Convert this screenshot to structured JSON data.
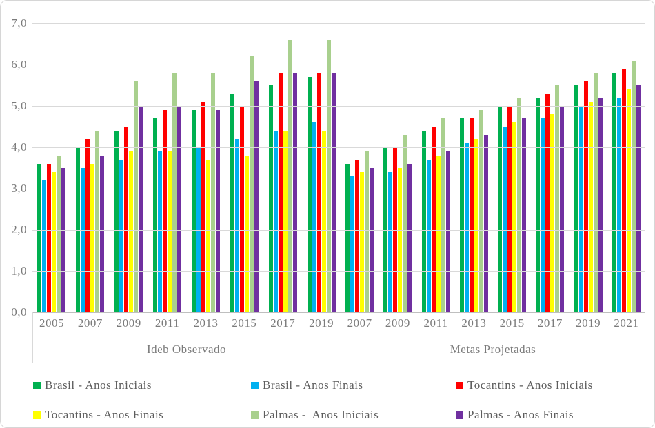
{
  "chart_data": {
    "type": "bar",
    "title": "",
    "xlabel": "",
    "ylabel": "",
    "ylim": [
      0,
      7
    ],
    "grid": true,
    "legend_position": "bottom",
    "yticks": [
      0,
      1,
      2,
      3,
      4,
      5,
      6,
      7
    ],
    "ytick_labels": [
      "0,0",
      "1,0",
      "2,0",
      "3,0",
      "4,0",
      "5,0",
      "6,0",
      "7,0"
    ],
    "groups": [
      {
        "label": "Ideb Observado",
        "categories": [
          "2005",
          "2007",
          "2009",
          "2011",
          "2013",
          "2015",
          "2017",
          "2019"
        ],
        "series": [
          {
            "name": "Brasil - Anos Iniciais",
            "color": "#00B050",
            "values": [
              3.6,
              4.0,
              4.4,
              4.7,
              4.9,
              5.3,
              5.5,
              5.7
            ]
          },
          {
            "name": "Brasil - Anos Finais",
            "color": "#00B0F0",
            "values": [
              3.2,
              3.5,
              3.7,
              3.9,
              4.0,
              4.2,
              4.4,
              4.6
            ]
          },
          {
            "name": "Tocantins - Anos Iniciais",
            "color": "#FF0000",
            "values": [
              3.6,
              4.2,
              4.5,
              4.9,
              5.1,
              5.0,
              5.8,
              5.8
            ]
          },
          {
            "name": "Tocantins - Anos Finais",
            "color": "#FFFF00",
            "values": [
              3.4,
              3.6,
              3.9,
              3.9,
              3.7,
              3.8,
              4.4,
              4.4
            ]
          },
          {
            "name": "Palmas -  Anos Iniciais",
            "color": "#A9D08E",
            "values": [
              3.8,
              4.4,
              5.6,
              5.8,
              5.8,
              6.2,
              6.6,
              6.6
            ]
          },
          {
            "name": "Palmas - Anos Finais",
            "color": "#7030A0",
            "values": [
              3.5,
              3.8,
              5.0,
              5.0,
              4.9,
              5.6,
              5.8,
              5.8
            ]
          }
        ]
      },
      {
        "label": "Metas Projetadas",
        "categories": [
          "2007",
          "2009",
          "2011",
          "2013",
          "2015",
          "2017",
          "2019",
          "2021"
        ],
        "series": [
          {
            "name": "Brasil - Anos Iniciais",
            "color": "#00B050",
            "values": [
              3.6,
              4.0,
              4.4,
              4.7,
              5.0,
              5.2,
              5.5,
              5.8
            ]
          },
          {
            "name": "Brasil - Anos Finais",
            "color": "#00B0F0",
            "values": [
              3.3,
              3.4,
              3.7,
              4.1,
              4.5,
              4.7,
              5.0,
              5.2
            ]
          },
          {
            "name": "Tocantins - Anos Iniciais",
            "color": "#FF0000",
            "values": [
              3.7,
              4.0,
              4.5,
              4.7,
              5.0,
              5.3,
              5.6,
              5.9
            ]
          },
          {
            "name": "Tocantins - Anos Finais",
            "color": "#FFFF00",
            "values": [
              3.4,
              3.5,
              3.8,
              4.2,
              4.6,
              4.8,
              5.1,
              5.4
            ]
          },
          {
            "name": "Palmas -  Anos Iniciais",
            "color": "#A9D08E",
            "values": [
              3.9,
              4.3,
              4.7,
              4.9,
              5.2,
              5.5,
              5.8,
              6.1
            ]
          },
          {
            "name": "Palmas - Anos Finais",
            "color": "#7030A0",
            "values": [
              3.5,
              3.6,
              3.9,
              4.3,
              4.7,
              5.0,
              5.2,
              5.5
            ]
          }
        ]
      }
    ],
    "legend": [
      {
        "label": "Brasil - Anos Iniciais",
        "color": "#00B050"
      },
      {
        "label": "Brasil - Anos Finais",
        "color": "#00B0F0"
      },
      {
        "label": "Tocantins - Anos Iniciais",
        "color": "#FF0000"
      },
      {
        "label": "Tocantins - Anos Finais",
        "color": "#FFFF00"
      },
      {
        "label": "Palmas -  Anos Iniciais",
        "color": "#A9D08E"
      },
      {
        "label": "Palmas - Anos Finais",
        "color": "#7030A0"
      }
    ]
  }
}
